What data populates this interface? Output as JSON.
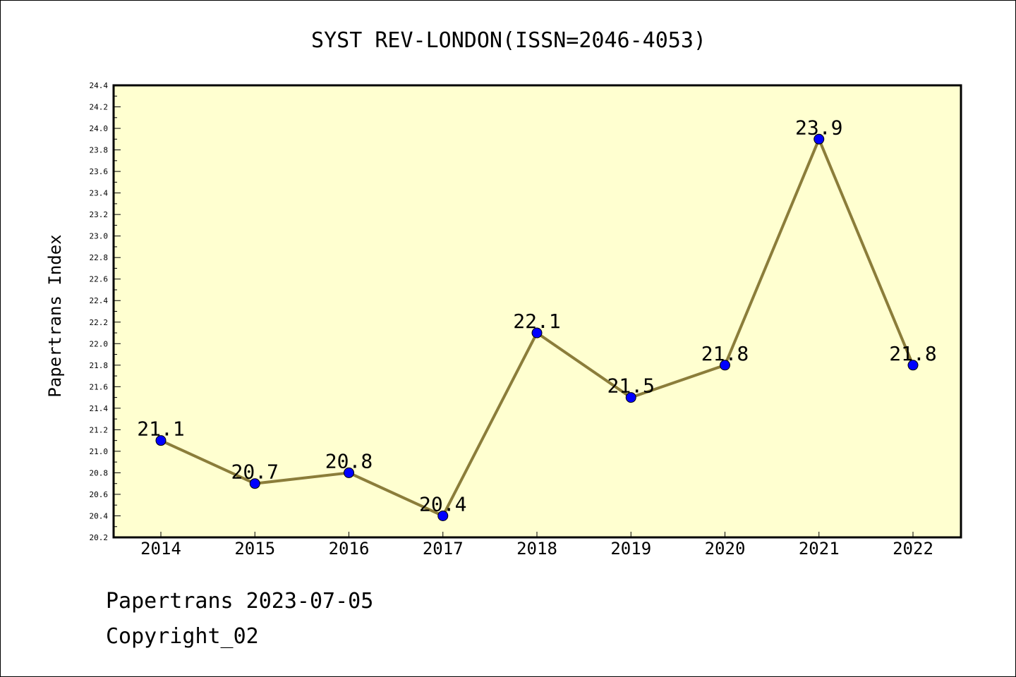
{
  "chart_data": {
    "type": "line",
    "title": "SYST REV-LONDON(ISSN=2046-4053)",
    "xlabel": "",
    "ylabel": "Papertrans Index",
    "categories": [
      "2014",
      "2015",
      "2016",
      "2017",
      "2018",
      "2019",
      "2020",
      "2021",
      "2022"
    ],
    "values": [
      21.1,
      20.7,
      20.8,
      20.4,
      22.1,
      21.5,
      21.8,
      23.9,
      21.8
    ],
    "data_labels": [
      "21.1",
      "20.7",
      "20.8",
      "20.4",
      "22.1",
      "21.5",
      "21.8",
      "23.9",
      "21.8"
    ],
    "ylim": [
      20.2,
      24.4
    ],
    "yticks": [
      "20.2",
      "20.4",
      "20.6",
      "20.8",
      "21.0",
      "21.2",
      "21.4",
      "21.6",
      "21.8",
      "22.0",
      "22.2",
      "22.4",
      "22.6",
      "22.8",
      "23.0",
      "23.2",
      "23.4",
      "23.6",
      "23.8",
      "24.0",
      "24.2",
      "24.4"
    ],
    "grid": false,
    "legend": "none",
    "colors": {
      "plot_background": "#ffffd0",
      "line": "#8b7d3a",
      "marker": "#0000ff"
    }
  },
  "footer": {
    "line1": "Papertrans 2023-07-05",
    "line2": "Copyright_02"
  }
}
